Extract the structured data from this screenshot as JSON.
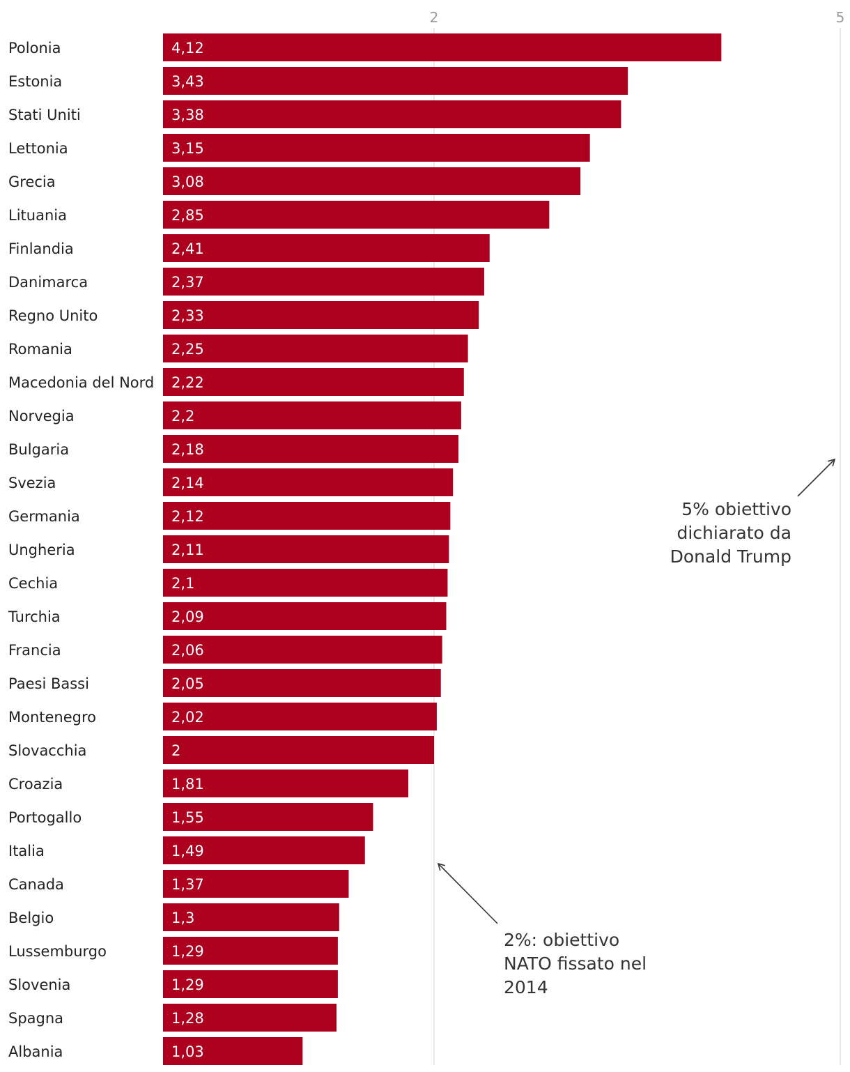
{
  "chart_data": {
    "type": "bar",
    "orientation": "horizontal",
    "categories": [
      "Polonia",
      "Estonia",
      "Stati Uniti",
      "Lettonia",
      "Grecia",
      "Lituania",
      "Finlandia",
      "Danimarca",
      "Regno Unito",
      "Romania",
      "Macedonia del Nord",
      "Norvegia",
      "Bulgaria",
      "Svezia",
      "Germania",
      "Ungheria",
      "Cechia",
      "Turchia",
      "Francia",
      "Paesi Bassi",
      "Montenegro",
      "Slovacchia",
      "Croazia",
      "Portogallo",
      "Italia",
      "Canada",
      "Belgio",
      "Lussemburgo",
      "Slovenia",
      "Spagna",
      "Albania"
    ],
    "values": [
      4.12,
      3.43,
      3.38,
      3.15,
      3.08,
      2.85,
      2.41,
      2.37,
      2.33,
      2.25,
      2.22,
      2.2,
      2.18,
      2.14,
      2.12,
      2.11,
      2.1,
      2.09,
      2.06,
      2.05,
      2.02,
      2,
      1.81,
      1.55,
      1.49,
      1.37,
      1.3,
      1.29,
      1.29,
      1.28,
      1.03
    ],
    "value_labels": [
      "4,12",
      "3,43",
      "3,38",
      "3,15",
      "3,08",
      "2,85",
      "2,41",
      "2,37",
      "2,33",
      "2,25",
      "2,22",
      "2,2",
      "2,18",
      "2,14",
      "2,12",
      "2,11",
      "2,1",
      "2,09",
      "2,06",
      "2,05",
      "2,02",
      "2",
      "1,81",
      "1,55",
      "1,49",
      "1,37",
      "1,3",
      "1,29",
      "1,29",
      "1,28",
      "1,03"
    ],
    "xlim": [
      0,
      5
    ],
    "ticks": [
      {
        "value": 2,
        "label": "2"
      },
      {
        "value": 5,
        "label": "5"
      }
    ],
    "annotations": [
      {
        "name": "nato-2-percent",
        "target_value": 2,
        "lines": [
          "2%: obiettivo",
          "NATO fissato nel",
          "2014"
        ]
      },
      {
        "name": "trump-5-percent",
        "target_value": 5,
        "lines": [
          "5% obiettivo",
          "dichiarato da",
          "Donald Trump"
        ]
      }
    ],
    "title": "",
    "xlabel": "",
    "ylabel": "",
    "grid": true
  },
  "colors": {
    "bar": "#ad001e",
    "gridline": "#e0e0e0",
    "arrow": "#333333"
  }
}
